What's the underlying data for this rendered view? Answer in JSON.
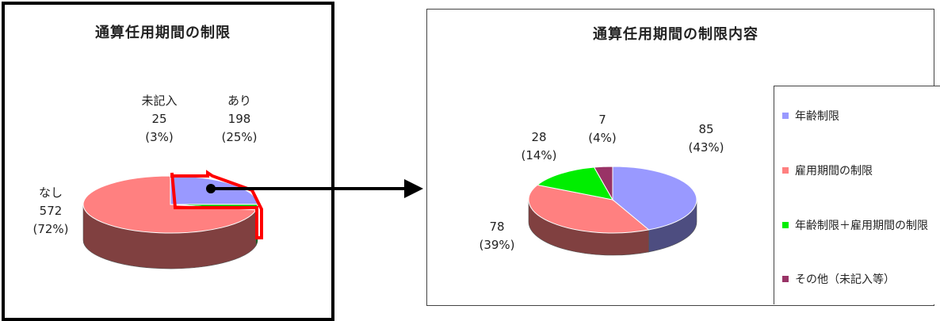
{
  "chart_data": [
    {
      "type": "pie",
      "title": "通算任用期間の制限",
      "slices": [
        {
          "label": "あり",
          "value": 198,
          "value_text": "198",
          "percent_text": "(25%)",
          "color": "#9999ff",
          "side_color": "#4d4d80"
        },
        {
          "label": "未記入",
          "value": 25,
          "value_text": "25",
          "percent_text": "(3%)",
          "color": "#00cc00",
          "side_color": "#006600"
        },
        {
          "label": "なし",
          "value": 572,
          "value_text": "572",
          "percent_text": "(72%)",
          "color": "#ff8080",
          "side_color": "#804040"
        }
      ],
      "highlight_color": "#ff0000"
    },
    {
      "type": "pie",
      "title": "通算任用期間の制限内容",
      "slices": [
        {
          "label": "年齢制限",
          "value": 85,
          "value_text": "85",
          "percent_text": "(43%)",
          "color": "#9999ff",
          "side_color": "#4d4d80"
        },
        {
          "label": "雇用期間の制限",
          "value": 78,
          "value_text": "78",
          "percent_text": "(39%)",
          "color": "#ff8080",
          "side_color": "#804040"
        },
        {
          "label": "年齢制限＋雇用期間の制限",
          "value": 28,
          "value_text": "28",
          "percent_text": "(14%)",
          "color": "#00ee00",
          "side_color": "#007700"
        },
        {
          "label": "その他（未記入等）",
          "value": 7,
          "value_text": "7",
          "percent_text": "(4%)",
          "color": "#993366",
          "side_color": "#4d1a33"
        }
      ],
      "legend": "right"
    }
  ]
}
